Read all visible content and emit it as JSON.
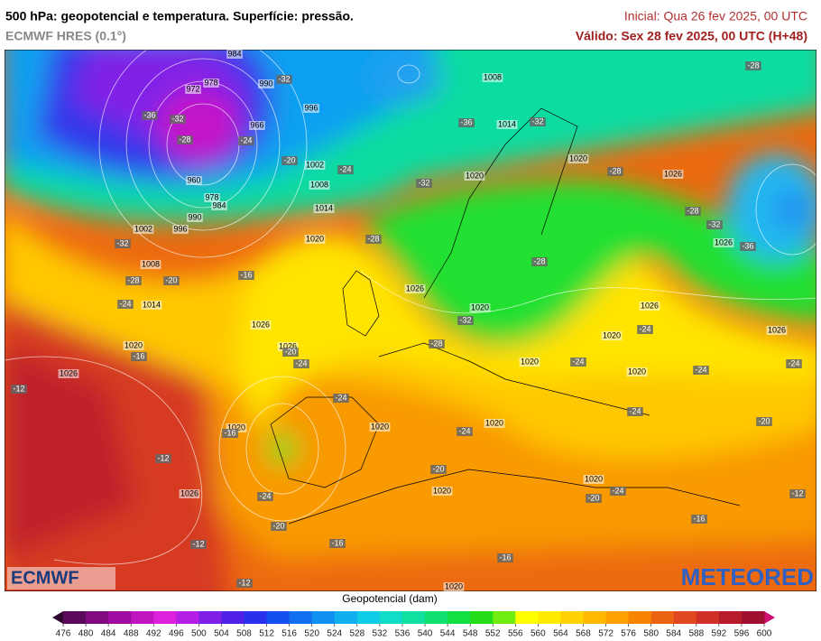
{
  "header": {
    "title": "500 hPa: geopotencial e temperatura. Superfície: pressão.",
    "model": "ECMWF HRES (0.1°)",
    "initial": "Inicial: Qua 26 fev 2025, 00 UTC",
    "valid": "Válido: Sex 28 fev 2025, 00 UTC (H+48)"
  },
  "logos": {
    "left": "ECMWF",
    "right": "METEORED"
  },
  "colorbar": {
    "title": "Geopotencial (dam)",
    "ticks": [
      476,
      480,
      484,
      488,
      492,
      496,
      500,
      504,
      508,
      512,
      516,
      520,
      524,
      528,
      532,
      536,
      540,
      544,
      548,
      552,
      556,
      560,
      564,
      568,
      572,
      576,
      580,
      584,
      588,
      592,
      596,
      600
    ],
    "colors": [
      "#5a0a5a",
      "#800a80",
      "#a00ca0",
      "#c014c0",
      "#dc20dc",
      "#b41ee6",
      "#8020e6",
      "#5020e6",
      "#2830ea",
      "#1450f0",
      "#1070f0",
      "#1090f0",
      "#10b0f0",
      "#10cce6",
      "#10dcc8",
      "#10e0a0",
      "#10e070",
      "#14e044",
      "#24dc18",
      "#70ec10",
      "#ffff00",
      "#ffea00",
      "#ffd200",
      "#ffba00",
      "#ffa000",
      "#f88400",
      "#ec6410",
      "#e04820",
      "#d03028",
      "#b81c2c",
      "#a01030"
    ],
    "under_color": "#300830",
    "over_color": "#d01070"
  },
  "map": {
    "pressure_labels": [
      984,
      972,
      978,
      990,
      996,
      966,
      960,
      978,
      984,
      990,
      996,
      1002,
      1008,
      1014,
      1020,
      1026,
      1002,
      1008,
      1014,
      1020,
      1026,
      1026,
      1020,
      1026,
      1008,
      1014,
      1020,
      1020,
      1026,
      1026,
      1026,
      1020,
      1026,
      1020,
      1020,
      1020,
      1020,
      1020,
      1020,
      1020,
      1020,
      1026
    ],
    "temperature_labels": [
      -32,
      -36,
      -28,
      -24,
      -32,
      -20,
      -24,
      -32,
      -36,
      -32,
      -28,
      -28,
      -28,
      -32,
      -36,
      -32,
      -28,
      -24,
      -20,
      -16,
      -16,
      -12,
      -12,
      -16,
      -24,
      -20,
      -20,
      -24,
      -24,
      -28,
      -28,
      -32,
      -28,
      -24,
      -24,
      -24,
      -24,
      -20,
      -24,
      -24,
      -20,
      -20,
      -24,
      -16,
      -16,
      -12,
      -12,
      -16,
      -12
    ]
  }
}
